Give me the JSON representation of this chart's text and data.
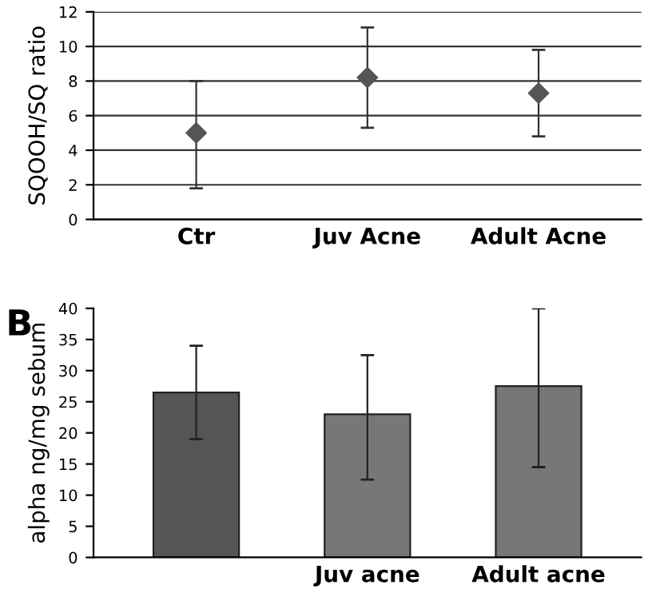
{
  "chart_data": [
    {
      "type": "scatter",
      "ylabel": "SQOOH/SQ ratio",
      "categories": [
        "Ctr",
        "Juv Acne",
        "Adult Acne"
      ],
      "values": [
        5.0,
        8.2,
        7.3
      ],
      "errors": [
        [
          1.8,
          8.0
        ],
        [
          5.3,
          11.1
        ],
        [
          4.8,
          9.8
        ]
      ],
      "color": "#555555",
      "marker": "diamond",
      "ylim": [
        0,
        12
      ],
      "yticks": [
        0,
        2,
        4,
        6,
        8,
        10,
        12
      ],
      "grid": "y"
    },
    {
      "type": "bar",
      "ylabel": "alpha ng/mg sebum",
      "annotations": [
        "B"
      ],
      "categories": [
        null,
        "Juv acne",
        "Adult acne"
      ],
      "values": [
        26.5,
        23,
        27.5
      ],
      "errors": [
        [
          19,
          34
        ],
        [
          12.5,
          32.5
        ],
        [
          14.5,
          40
        ]
      ],
      "colors": [
        "#555555",
        "#777777",
        "#777777"
      ],
      "ylim": [
        0,
        40
      ],
      "yticks": [
        0,
        5,
        10,
        15,
        20,
        25,
        30,
        35,
        40
      ]
    }
  ]
}
